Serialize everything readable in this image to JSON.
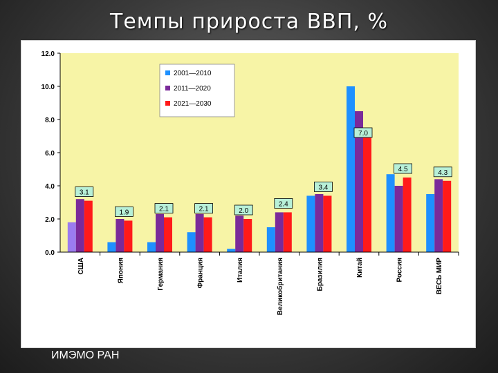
{
  "slide": {
    "title": "Темпы прироста  ВВП, %",
    "footer": "ИМЭМО РАН"
  },
  "colors": {
    "plot_bg": "#f7f4a6",
    "series_2001_2010": "#1e90ff",
    "series_2011_2020": "#7a2a9a",
    "series_2021_2030": "#ff1a1a",
    "usa_first_bar": "#9b7cf0",
    "label_box_bg": "#b8f0d8"
  },
  "chart_data": {
    "type": "bar",
    "title": "",
    "xlabel": "",
    "ylabel": "",
    "ylim": [
      0,
      12
    ],
    "yticks": [
      "0.0",
      "2.0",
      "4.0",
      "6.0",
      "8.0",
      "10.0",
      "12.0"
    ],
    "ytick_values": [
      0,
      2,
      4,
      6,
      8,
      10,
      12
    ],
    "grid": false,
    "legend_position": "top-left",
    "categories": [
      "США",
      "Япония",
      "Германия",
      "Франция",
      "Италия",
      "Великобритания",
      "Бразилия",
      "Китай",
      "Россия",
      "ВЕСЬ МИР"
    ],
    "series": [
      {
        "name": "2001—2010",
        "values": [
          1.8,
          0.6,
          0.6,
          1.2,
          0.2,
          1.5,
          3.4,
          10.0,
          4.7,
          3.5
        ]
      },
      {
        "name": "2011—2020",
        "values": [
          3.2,
          2.0,
          2.3,
          2.3,
          2.2,
          2.4,
          3.5,
          8.5,
          4.0,
          4.4
        ]
      },
      {
        "name": "2021—2030",
        "values": [
          3.1,
          1.9,
          2.1,
          2.1,
          2.0,
          2.4,
          3.4,
          7.0,
          4.5,
          4.3
        ]
      }
    ],
    "data_labels": [
      "3.1",
      "1.9",
      "2.1",
      "2.1",
      "2.0",
      "2.4",
      "3.4",
      "7.0",
      "4.5",
      "4.3"
    ]
  }
}
